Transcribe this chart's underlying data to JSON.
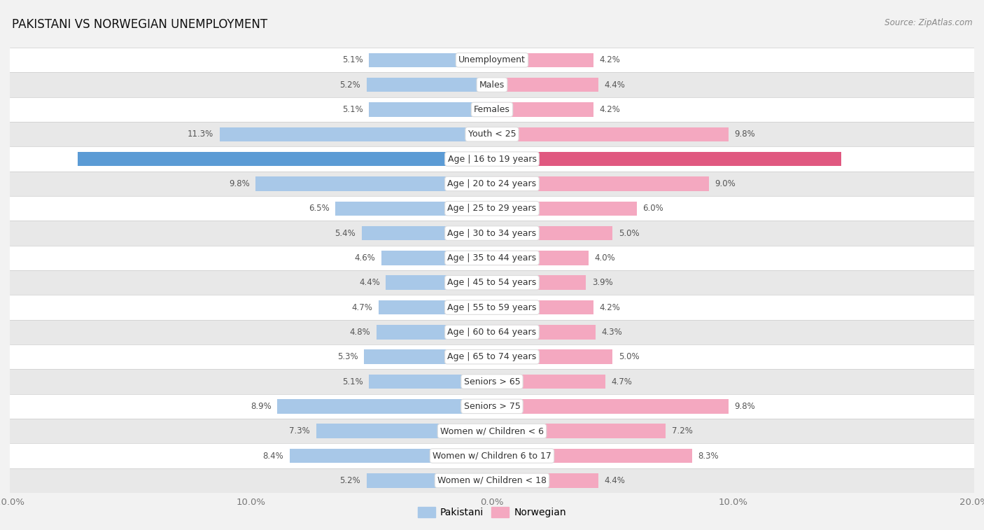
{
  "title": "Pakistani vs Norwegian Unemployment",
  "source": "Source: ZipAtlas.com",
  "categories": [
    "Unemployment",
    "Males",
    "Females",
    "Youth < 25",
    "Age | 16 to 19 years",
    "Age | 20 to 24 years",
    "Age | 25 to 29 years",
    "Age | 30 to 34 years",
    "Age | 35 to 44 years",
    "Age | 45 to 54 years",
    "Age | 55 to 59 years",
    "Age | 60 to 64 years",
    "Age | 65 to 74 years",
    "Seniors > 65",
    "Seniors > 75",
    "Women w/ Children < 6",
    "Women w/ Children 6 to 17",
    "Women w/ Children < 18"
  ],
  "pakistani": [
    5.1,
    5.2,
    5.1,
    11.3,
    17.2,
    9.8,
    6.5,
    5.4,
    4.6,
    4.4,
    4.7,
    4.8,
    5.3,
    5.1,
    8.9,
    7.3,
    8.4,
    5.2
  ],
  "norwegian": [
    4.2,
    4.4,
    4.2,
    9.8,
    14.5,
    9.0,
    6.0,
    5.0,
    4.0,
    3.9,
    4.2,
    4.3,
    5.0,
    4.7,
    9.8,
    7.2,
    8.3,
    4.4
  ],
  "max_val": 20.0,
  "pakistani_color": "#A8C8E8",
  "norwegian_color": "#F4A8C0",
  "pakistani_highlight": "#5B9BD5",
  "norwegian_highlight": "#E05880",
  "label_color": "#555555",
  "bg_color": "#F2F2F2",
  "row_white": "#FFFFFF",
  "row_gray": "#E8E8E8",
  "center_label_color": "#333333",
  "highlight_label_color": "#FFFFFF",
  "bar_height": 0.58,
  "tick_label_color": "#777777"
}
